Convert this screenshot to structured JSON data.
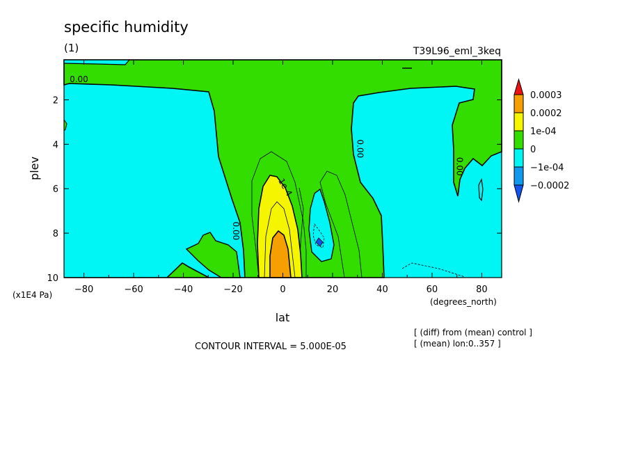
{
  "chart_data": {
    "type": "contour",
    "title": "specific humidity",
    "subtitle": "(1)",
    "run_label": "T39L96_eml_3keq",
    "xlabel": "lat",
    "x_units": "(degrees_north)",
    "ylabel": "plev",
    "y_units": "(x1E4 Pa)",
    "xlim": [
      -88,
      88
    ],
    "ylim": [
      10,
      0.2
    ],
    "x_ticks": [
      -80,
      -60,
      -40,
      -20,
      0,
      20,
      40,
      60,
      80
    ],
    "y_ticks": [
      2,
      4,
      6,
      8,
      10
    ],
    "contour_interval_text": "CONTOUR INTERVAL = 5.000E-05",
    "notes": [
      "[ (diff) from (mean) control ]",
      "[ (mean) lon:0..357 ]"
    ],
    "contour_labels": [
      {
        "text": "0.00",
        "lat": -82,
        "plev": 1.2
      },
      {
        "text": "0.00",
        "lat": -20,
        "plev": 7.9
      },
      {
        "text": "1e-4",
        "lat": 0,
        "plev": 6.0
      },
      {
        "text": "0.00",
        "lat": 30,
        "plev": 4.2
      },
      {
        "text": "0.00",
        "lat": 70,
        "plev": 5.0
      }
    ],
    "colorbar": {
      "labels": [
        "0.0003",
        "0.0002",
        "1e-04",
        "0",
        "-1e-04",
        "-0.0002"
      ],
      "colors": [
        "#ee1111",
        "#f5a000",
        "#f5f500",
        "#33dd00",
        "#00f5f5",
        "#1199ee",
        "#1155ee"
      ]
    },
    "regions": {
      "neg": "#00f5f5",
      "zero_to_pos": "#33dd00",
      "pos1": "#f5f500",
      "pos2": "#f5a000",
      "neg2": "#1199ee"
    }
  }
}
